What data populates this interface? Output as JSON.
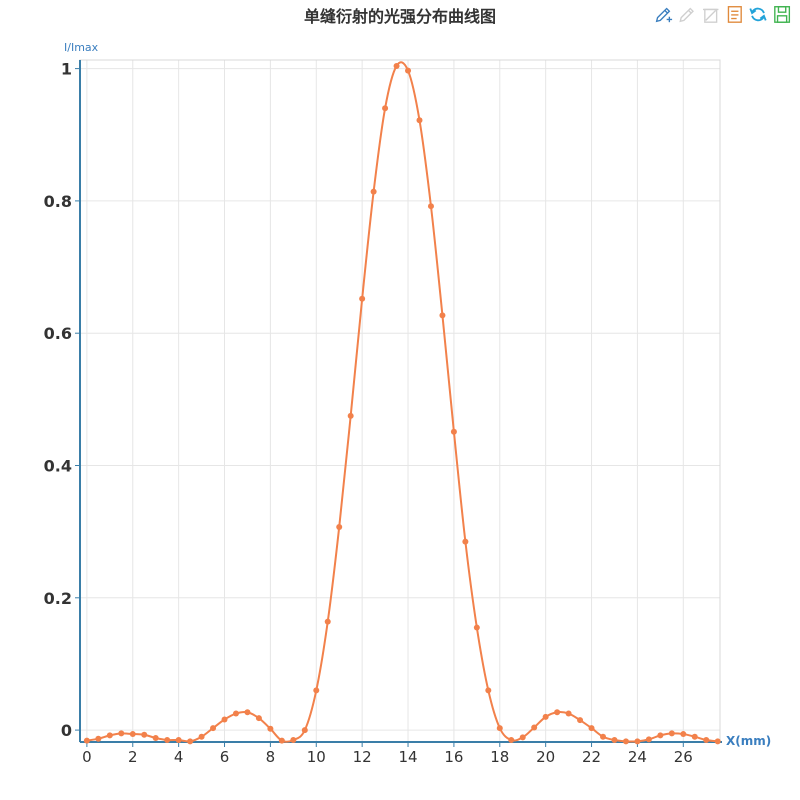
{
  "chart_data": {
    "type": "line",
    "title": "单缝衍射的光强分布曲线图",
    "xlabel": "X(mm)",
    "ylabel": "I/Imax",
    "xlim": [
      -0.3,
      27.6
    ],
    "ylim": [
      -0.018,
      1.013
    ],
    "x_ticks": [
      0,
      2,
      4,
      6,
      8,
      10,
      12,
      14,
      16,
      18,
      20,
      22,
      24,
      26
    ],
    "y_ticks": [
      0,
      0.2,
      0.4,
      0.6,
      0.8,
      1
    ],
    "y_tick_labels": [
      "0",
      "0.2",
      "0.4",
      "0.6",
      "0.8",
      "1"
    ],
    "grid": true,
    "smooth": true,
    "series": [
      {
        "color": "#f2814b",
        "x": [
          0.0,
          0.5,
          1.0,
          1.5,
          2.0,
          2.5,
          3.0,
          3.5,
          4.0,
          4.5,
          5.0,
          5.5,
          6.0,
          6.5,
          7.0,
          7.5,
          8.0,
          8.5,
          9.0,
          9.5,
          10.0,
          10.5,
          11.0,
          11.5,
          12.0,
          12.5,
          13.0,
          13.5,
          14.0,
          14.5,
          15.0,
          15.5,
          16.0,
          16.5,
          17.0,
          17.5,
          18.0,
          18.5,
          19.0,
          19.5,
          20.0,
          20.5,
          21.0,
          21.5,
          22.0,
          22.5,
          23.0,
          23.5,
          24.0,
          24.5,
          25.0,
          25.5,
          26.0,
          26.5,
          27.0,
          27.5
        ],
        "y": [
          -0.016,
          -0.013,
          -0.008,
          -0.005,
          -0.006,
          -0.007,
          -0.012,
          -0.015,
          -0.015,
          -0.017,
          -0.01,
          0.003,
          0.016,
          0.025,
          0.027,
          0.018,
          0.002,
          -0.016,
          -0.015,
          0.0,
          0.06,
          0.164,
          0.307,
          0.475,
          0.652,
          0.814,
          0.94,
          1.004,
          0.997,
          0.922,
          0.792,
          0.627,
          0.451,
          0.285,
          0.155,
          0.06,
          0.003,
          -0.015,
          -0.011,
          0.004,
          0.02,
          0.027,
          0.025,
          0.015,
          0.003,
          -0.01,
          -0.015,
          -0.017,
          -0.017,
          -0.014,
          -0.008,
          -0.005,
          -0.006,
          -0.01,
          -0.015,
          -0.017
        ]
      }
    ]
  }
}
